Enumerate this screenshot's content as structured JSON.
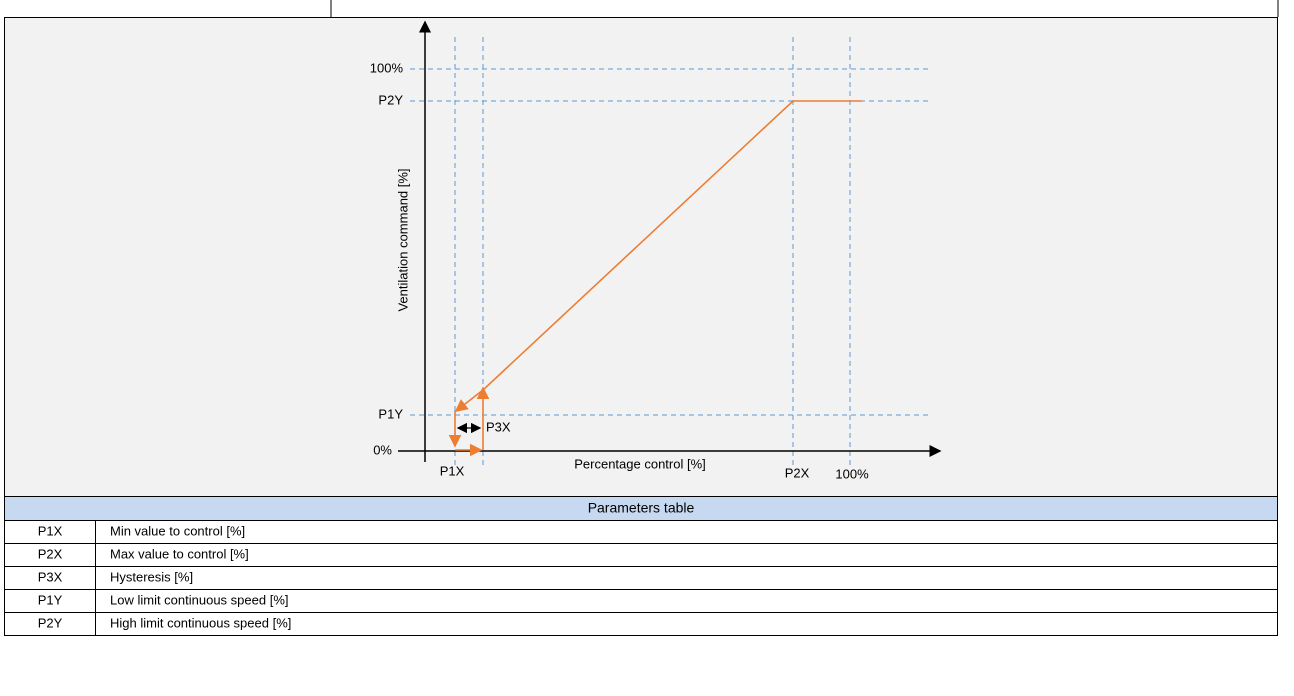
{
  "diagram": {
    "y_axis_label": "Ventilation command [%]",
    "x_axis_label": "Percentage control [%]",
    "y_labels": [
      "100%",
      "P2Y",
      "P1Y",
      "0%"
    ],
    "x_labels": [
      "P1X",
      "P2X",
      "100%"
    ],
    "hysteresis_label": "P3X"
  },
  "table": {
    "title": "Parameters table",
    "rows": [
      [
        "P1X",
        "Min value to control [%]"
      ],
      [
        "P2X",
        "Max value to control [%]"
      ],
      [
        "P3X",
        "Hysteresis [%]"
      ],
      [
        "P1Y",
        "Low limit continuous speed [%]"
      ],
      [
        "P2Y",
        "High limit continuous speed [%]"
      ]
    ]
  }
}
